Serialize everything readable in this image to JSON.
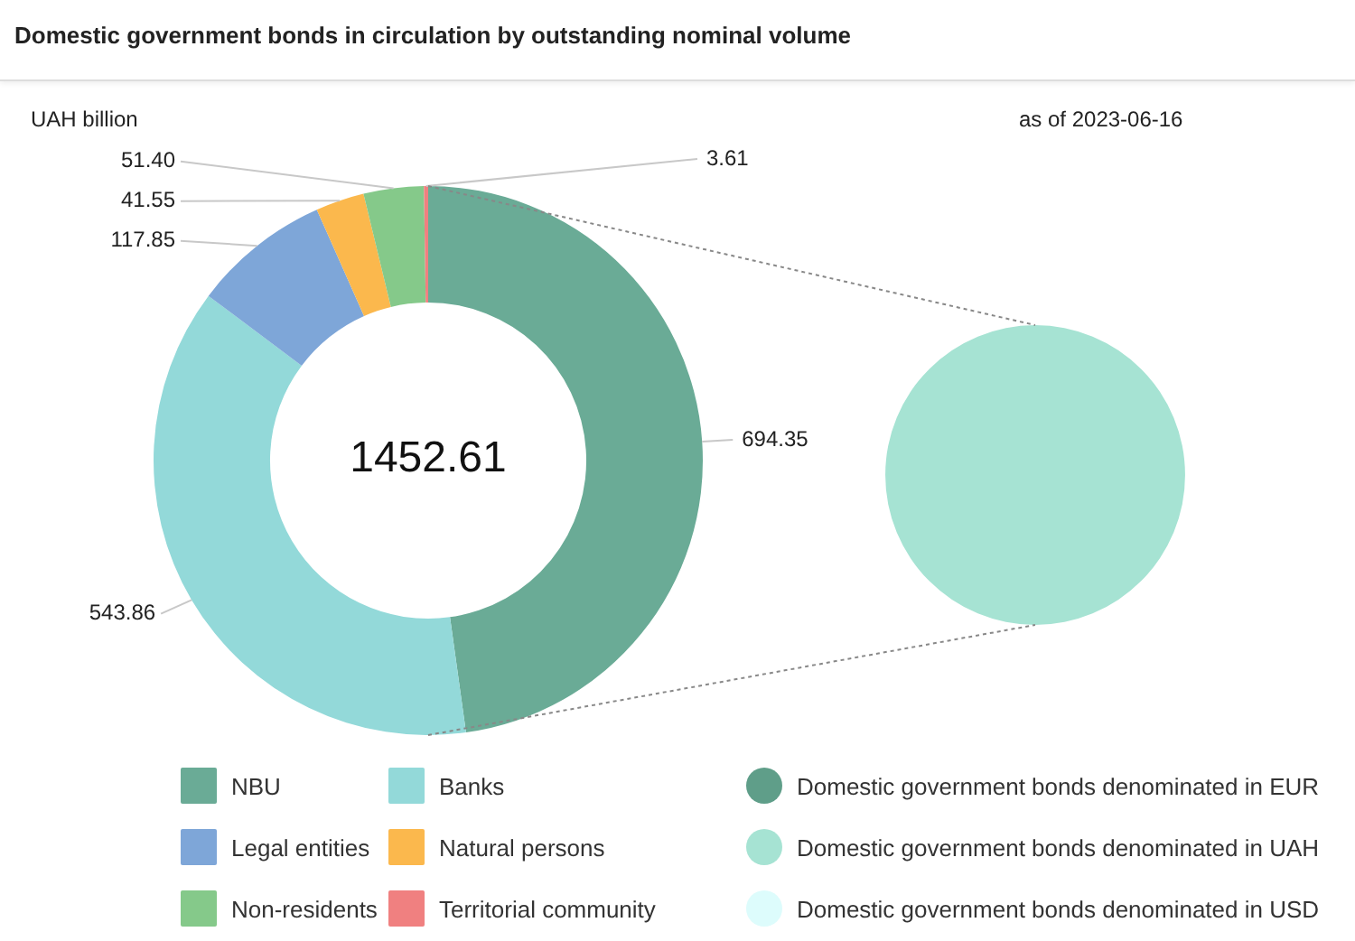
{
  "chart_data": [
    {
      "type": "donut",
      "title": "Domestic government bonds in circulation by outstanding nominal volume",
      "subtitle": "UAH billion",
      "annotations": [
        "as of 2023-06-16",
        "1452.61"
      ],
      "categories": [
        "NBU",
        "Banks",
        "Legal entities",
        "Natural persons",
        "Non-residents",
        "Territorial community"
      ],
      "values": [
        694.35,
        543.86,
        117.85,
        41.55,
        51.4,
        3.61
      ],
      "value_labels": [
        "694.35",
        "543.86",
        "117.85",
        "41.55",
        "51.40",
        "3.61"
      ],
      "colors": [
        "#6aab96",
        "#93d9d9",
        "#7ea6d8",
        "#fbb84d",
        "#85c98a",
        "#f08080"
      ],
      "legend": "bottom"
    },
    {
      "type": "pie",
      "categories": [
        "Domestic government bonds denominated in EUR",
        "Domestic government bonds denominated in UAH",
        "Domestic government bonds denominated in USD"
      ],
      "values": [
        0,
        100,
        0
      ],
      "colors": [
        "#5f9e89",
        "#a6e3d3",
        "#ddfcfc"
      ],
      "legend": "bottom"
    }
  ]
}
